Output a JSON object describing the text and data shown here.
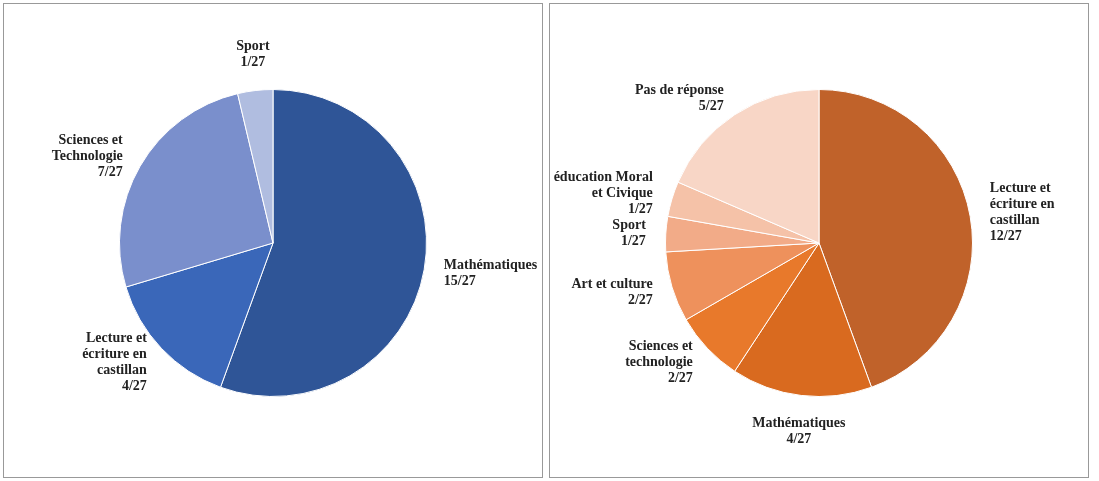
{
  "chart_data": [
    {
      "type": "pie",
      "categories": [
        "Mathématiques",
        "Lecture et écriture en castillan",
        "Sciences et Technologie",
        "Sport"
      ],
      "values": [
        15,
        4,
        7,
        1
      ],
      "value_labels": [
        "15/27",
        "4/27",
        "7/27",
        "1/27"
      ],
      "colors": [
        "#2f5597",
        "#3a67b9",
        "#7a8fcc",
        "#b0bde0"
      ],
      "legend": false
    },
    {
      "type": "pie",
      "categories": [
        "Lecture et écriture en castillan",
        "Mathématiques",
        "Sciences et technologie",
        "Art et culture",
        "Sport",
        "éducation Moral et Civique",
        "Pas de réponse"
      ],
      "values": [
        12,
        4,
        2,
        2,
        1,
        1,
        5
      ],
      "value_labels": [
        "12/27",
        "4/27",
        "2/27",
        "2/27",
        "1/27",
        "1/27",
        "5/27"
      ],
      "colors": [
        "#c0622a",
        "#d96a1f",
        "#e8792b",
        "#ee915c",
        "#f2ab88",
        "#f5c2a8",
        "#f8d6c6"
      ],
      "legend": false
    }
  ]
}
